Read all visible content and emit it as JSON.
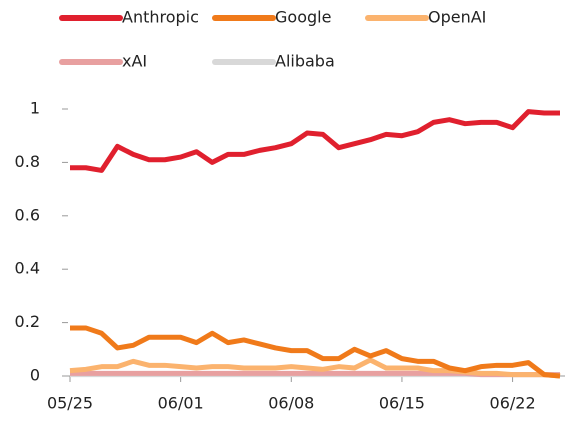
{
  "chart_data": {
    "type": "line",
    "categories": [
      "05/25",
      null,
      null,
      null,
      null,
      null,
      null,
      "06/01",
      null,
      null,
      null,
      null,
      null,
      null,
      "06/08",
      null,
      null,
      null,
      null,
      null,
      null,
      "06/15",
      null,
      null,
      null,
      null,
      null,
      null,
      "06/22",
      null,
      null,
      null
    ],
    "series": [
      {
        "name": "Anthropic",
        "color": "#e0202e",
        "values": [
          0.78,
          0.78,
          0.77,
          0.86,
          0.83,
          0.81,
          0.81,
          0.82,
          0.84,
          0.8,
          0.83,
          0.83,
          0.845,
          0.855,
          0.87,
          0.91,
          0.905,
          0.855,
          0.87,
          0.885,
          0.905,
          0.9,
          0.915,
          0.95,
          0.96,
          0.945,
          0.95,
          0.95,
          0.93,
          0.99,
          0.985,
          0.985
        ]
      },
      {
        "name": "Google",
        "color": "#f07a1a",
        "values": [
          0.18,
          0.18,
          0.16,
          0.105,
          0.115,
          0.145,
          0.145,
          0.145,
          0.125,
          0.16,
          0.125,
          0.135,
          0.12,
          0.105,
          0.095,
          0.095,
          0.065,
          0.065,
          0.1,
          0.075,
          0.095,
          0.065,
          0.055,
          0.055,
          0.03,
          0.02,
          0.035,
          0.04,
          0.04,
          0.05,
          0.005,
          0.0
        ]
      },
      {
        "name": "OpenAI",
        "color": "#fbb36e",
        "values": [
          0.02,
          0.025,
          0.035,
          0.035,
          0.055,
          0.04,
          0.04,
          0.035,
          0.03,
          0.035,
          0.035,
          0.03,
          0.03,
          0.03,
          0.035,
          0.03,
          0.025,
          0.035,
          0.03,
          0.06,
          0.03,
          0.03,
          0.03,
          0.02,
          0.02,
          0.015,
          0.01,
          0.01,
          0.005,
          0.005,
          0.005,
          0.0
        ]
      },
      {
        "name": "xAI",
        "color": "#e8a0a0",
        "values": [
          0.01,
          0.01,
          0.01,
          0.01,
          0.01,
          0.01,
          0.01,
          0.01,
          0.01,
          0.01,
          0.01,
          0.01,
          0.01,
          0.01,
          0.01,
          0.01,
          0.01,
          0.01,
          0.01,
          0.01,
          0.01,
          0.01,
          0.01,
          0.01,
          0.01,
          0.01,
          0.005,
          0.005,
          0.005,
          0.005,
          0.005,
          0.005
        ]
      },
      {
        "name": "Alibaba",
        "color": "#d8d8d8",
        "values": [
          0.005,
          0.005,
          0.005,
          0.005,
          0.005,
          0.005,
          0.005,
          0.005,
          0.005,
          0.005,
          0.005,
          0.005,
          0.005,
          0.005,
          0.005,
          0.005,
          0.005,
          0.005,
          0.005,
          0.005,
          0.005,
          0.005,
          0.005,
          0.005,
          0.005,
          0.005,
          0.005,
          0.005,
          0.005,
          0.005,
          0.005,
          0.005
        ]
      }
    ],
    "ylim": [
      0,
      1
    ],
    "yticks": [
      0,
      0.2,
      0.4,
      0.6,
      0.8,
      1
    ]
  }
}
